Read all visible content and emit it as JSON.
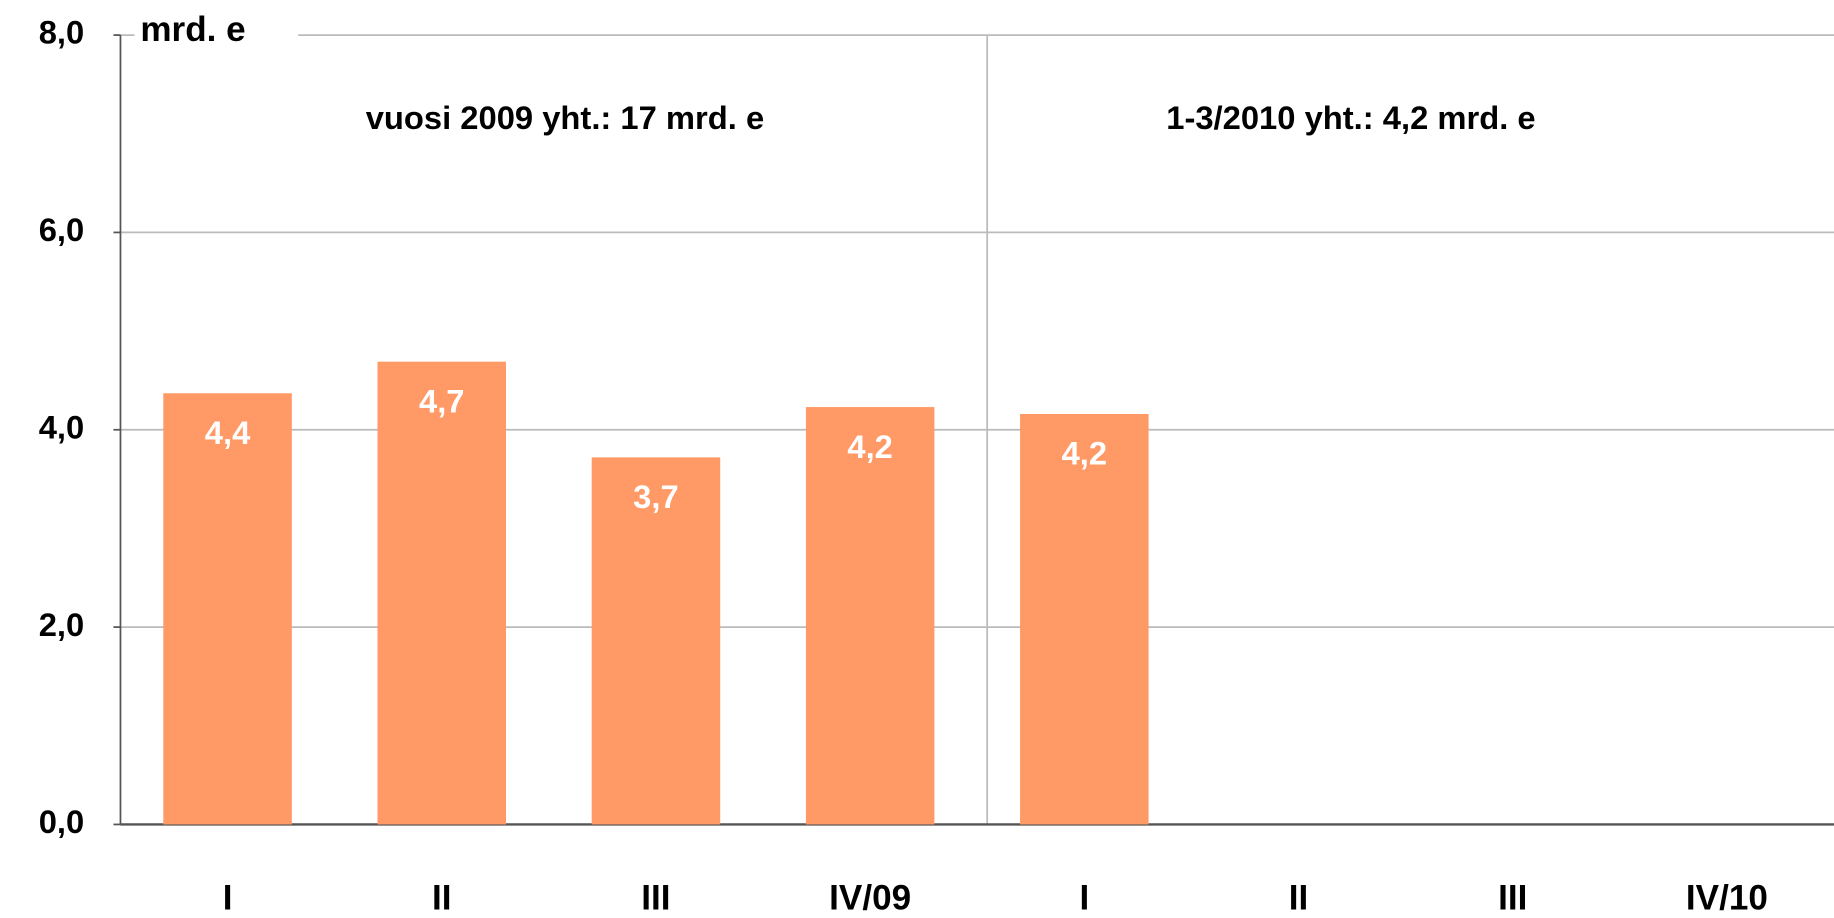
{
  "chart_data": {
    "type": "bar",
    "y_axis_label": "mrd. e",
    "annotations": [
      "vuosi 2009 yht.: 17 mrd. e",
      "1-3/2010 yht.: 4,2 mrd. e"
    ],
    "categories": [
      "I",
      "II",
      "III",
      "IV/09",
      "I",
      "II",
      "III",
      "IV/10"
    ],
    "values": [
      4.37,
      4.69,
      3.72,
      4.23,
      4.16,
      null,
      null,
      null
    ],
    "value_labels": [
      "4,4",
      "4,7",
      "3,7",
      "4,2",
      "4,2",
      null,
      null,
      null
    ],
    "color": "#ff9966",
    "ylim": [
      0,
      8
    ],
    "yticks": [
      {
        "value": 0,
        "label": "0,0"
      },
      {
        "value": 2,
        "label": "2,0"
      },
      {
        "value": 4,
        "label": "4,0"
      },
      {
        "value": 6,
        "label": "6,0"
      },
      {
        "value": 8,
        "label": "8,0"
      }
    ],
    "grid": true
  }
}
